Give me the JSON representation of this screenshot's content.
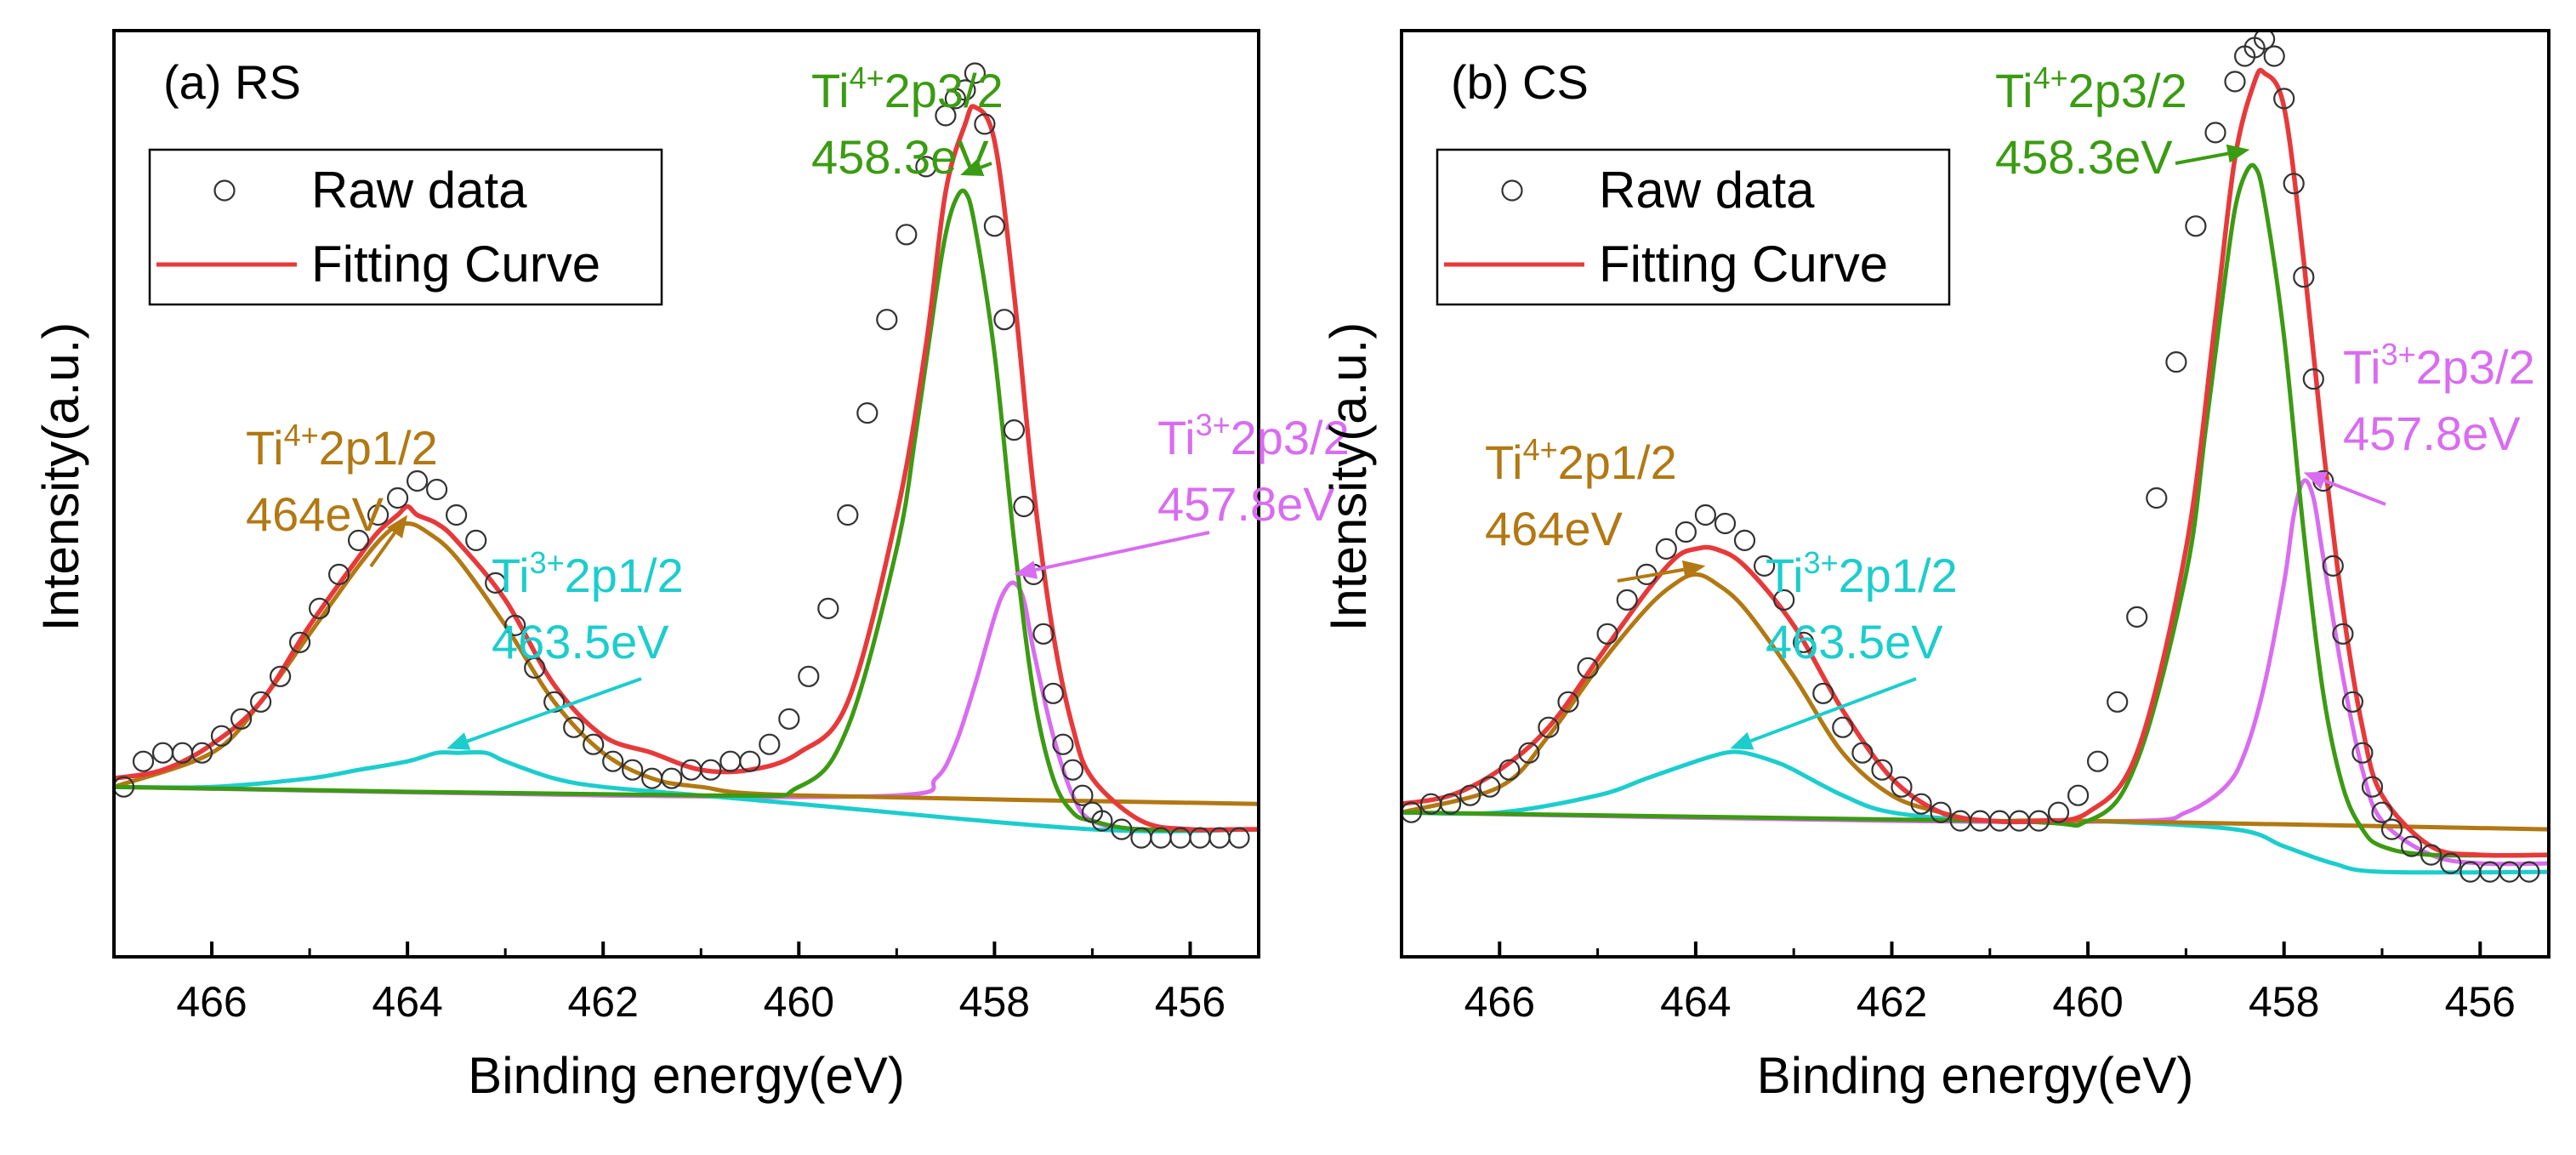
{
  "colors": {
    "fit": "#e8393a",
    "ti4_3": "#3b9b12",
    "ti4_1": "#b27812",
    "ti3_1": "#1ccdcd",
    "ti3_3": "#d96cf0",
    "raw": "#333333",
    "axis": "#000000"
  },
  "chart_data": [
    {
      "type": "scatter",
      "title": "(a) RS",
      "xlabel": "Binding energy(eV)",
      "ylabel": "Intensity(a.u.)",
      "xlim": [
        467,
        455.3
      ],
      "ylim": [
        0,
        1.09
      ],
      "xticks": [
        466,
        464,
        462,
        460,
        458,
        456
      ],
      "legend": {
        "position": "top-left",
        "entries": [
          "Raw data",
          "Fitting Curve"
        ]
      },
      "series": [
        {
          "name": "Raw data",
          "kind": "markers",
          "x": [
            466.9,
            466.7,
            466.5,
            466.3,
            466.1,
            465.9,
            465.7,
            465.5,
            465.3,
            465.1,
            464.9,
            464.7,
            464.5,
            464.3,
            464.1,
            463.9,
            463.7,
            463.5,
            463.3,
            463.1,
            462.9,
            462.7,
            462.5,
            462.3,
            462.1,
            461.9,
            461.7,
            461.5,
            461.3,
            461.1,
            460.9,
            460.7,
            460.5,
            460.3,
            460.1,
            459.9,
            459.7,
            459.5,
            459.3,
            459.1,
            458.9,
            458.7,
            458.5,
            458.4,
            458.3,
            458.2,
            458.1,
            458.0,
            457.9,
            457.8,
            457.7,
            457.6,
            457.5,
            457.4,
            457.3,
            457.2,
            457.1,
            457.0,
            456.9,
            456.7,
            456.5,
            456.3,
            456.1,
            455.9,
            455.7,
            455.5
          ],
          "y": [
            0.2,
            0.23,
            0.24,
            0.24,
            0.24,
            0.26,
            0.28,
            0.3,
            0.33,
            0.37,
            0.41,
            0.45,
            0.49,
            0.52,
            0.54,
            0.56,
            0.55,
            0.52,
            0.49,
            0.44,
            0.39,
            0.34,
            0.3,
            0.27,
            0.25,
            0.23,
            0.22,
            0.21,
            0.21,
            0.22,
            0.22,
            0.23,
            0.23,
            0.25,
            0.28,
            0.33,
            0.41,
            0.52,
            0.64,
            0.75,
            0.85,
            0.93,
            0.99,
            1.01,
            1.02,
            1.04,
            0.98,
            0.86,
            0.75,
            0.62,
            0.53,
            0.45,
            0.38,
            0.31,
            0.25,
            0.22,
            0.19,
            0.17,
            0.16,
            0.15,
            0.14,
            0.14,
            0.14,
            0.14,
            0.14,
            0.14
          ]
        },
        {
          "name": "Fitting Curve",
          "kind": "fit",
          "color_key": "fit",
          "x": [
            467.0,
            466.5,
            466.0,
            465.5,
            465.0,
            464.5,
            464.3,
            464.1,
            464.0,
            463.9,
            463.7,
            463.5,
            463.0,
            462.5,
            462.0,
            461.5,
            461.0,
            460.5,
            460.0,
            459.5,
            459.0,
            458.7,
            458.5,
            458.3,
            458.2,
            458.0,
            457.8,
            457.6,
            457.4,
            457.2,
            457.0,
            456.5,
            456.0,
            455.5,
            455.3
          ],
          "y": [
            0.21,
            0.22,
            0.25,
            0.3,
            0.39,
            0.47,
            0.5,
            0.52,
            0.53,
            0.52,
            0.51,
            0.49,
            0.42,
            0.32,
            0.26,
            0.24,
            0.22,
            0.22,
            0.24,
            0.3,
            0.52,
            0.72,
            0.9,
            0.98,
            1.0,
            0.96,
            0.78,
            0.55,
            0.38,
            0.27,
            0.21,
            0.16,
            0.15,
            0.15,
            0.15
          ]
        },
        {
          "name": "Ti4+ 2p3/2",
          "kind": "component",
          "color_key": "ti4_3",
          "x": [
            467.0,
            461.0,
            460.0,
            459.5,
            459.0,
            458.8,
            458.6,
            458.5,
            458.4,
            458.3,
            458.2,
            458.0,
            457.8,
            457.6,
            457.4,
            457.2,
            457.0,
            456.5,
            455.3
          ],
          "y": [
            0.2,
            0.19,
            0.2,
            0.27,
            0.48,
            0.62,
            0.78,
            0.85,
            0.89,
            0.9,
            0.86,
            0.71,
            0.49,
            0.31,
            0.21,
            0.17,
            0.16,
            0.15,
            0.15
          ]
        },
        {
          "name": "Ti4+ 2p1/2",
          "kind": "component",
          "color_key": "ti4_1",
          "x": [
            467.0,
            466.0,
            465.5,
            465.0,
            464.5,
            464.2,
            464.0,
            463.8,
            463.5,
            463.0,
            462.5,
            462.0,
            461.5,
            461.0,
            460.0,
            455.3
          ],
          "y": [
            0.2,
            0.24,
            0.3,
            0.38,
            0.46,
            0.5,
            0.51,
            0.5,
            0.47,
            0.39,
            0.3,
            0.24,
            0.21,
            0.2,
            0.19,
            0.18
          ]
        },
        {
          "name": "Ti3+ 2p1/2",
          "kind": "component",
          "color_key": "ti3_1",
          "x": [
            467.0,
            466.0,
            465.0,
            464.5,
            464.0,
            463.7,
            463.5,
            463.2,
            463.0,
            462.5,
            462.0,
            461.0,
            460.0,
            457.0,
            455.3
          ],
          "y": [
            0.2,
            0.2,
            0.21,
            0.22,
            0.23,
            0.24,
            0.24,
            0.24,
            0.23,
            0.21,
            0.2,
            0.19,
            0.18,
            0.15,
            0.15
          ]
        },
        {
          "name": "Ti3+ 2p3/2",
          "kind": "component",
          "color_key": "ti3_3",
          "x": [
            467.0,
            462.0,
            459.0,
            458.6,
            458.4,
            458.2,
            458.0,
            457.9,
            457.8,
            457.7,
            457.6,
            457.4,
            457.2,
            457.0,
            456.5,
            455.3
          ],
          "y": [
            0.2,
            0.19,
            0.19,
            0.21,
            0.25,
            0.32,
            0.4,
            0.43,
            0.44,
            0.42,
            0.36,
            0.26,
            0.19,
            0.16,
            0.15,
            0.15
          ]
        }
      ],
      "annotations": [
        {
          "id": "a_ti4_3",
          "color_key": "ti4_3",
          "species": "Ti",
          "sup": "4+",
          "orbital": "2p3/2",
          "energy": "458.3eV",
          "target": [
            458.35,
            0.92
          ]
        },
        {
          "id": "a_ti3_3",
          "color_key": "ti3_3",
          "species": "Ti",
          "sup": "3+",
          "orbital": "2p3/2",
          "energy": "457.8eV",
          "target": [
            457.8,
            0.45
          ]
        },
        {
          "id": "a_ti4_1",
          "color_key": "ti4_1",
          "species": "Ti",
          "sup": "4+",
          "orbital": "2p1/2",
          "energy": "464eV",
          "target": [
            464.0,
            0.52
          ]
        },
        {
          "id": "a_ti3_1",
          "color_key": "ti3_1",
          "species": "Ti",
          "sup": "3+",
          "orbital": "2p1/2",
          "energy": "463.5eV",
          "target": [
            463.6,
            0.245
          ]
        }
      ]
    },
    {
      "type": "scatter",
      "title": "(b) CS",
      "xlabel": "Binding energy(eV)",
      "ylabel": "Intensity(a.u.)",
      "xlim": [
        467,
        455.3
      ],
      "ylim": [
        0,
        1.09
      ],
      "xticks": [
        466,
        464,
        462,
        460,
        458,
        456
      ],
      "legend": {
        "position": "top-left",
        "entries": [
          "Raw data",
          "Fitting Curve"
        ]
      },
      "series": [
        {
          "name": "Raw data",
          "kind": "markers",
          "x": [
            466.9,
            466.7,
            466.5,
            466.3,
            466.1,
            465.9,
            465.7,
            465.5,
            465.3,
            465.1,
            464.9,
            464.7,
            464.5,
            464.3,
            464.1,
            463.9,
            463.7,
            463.5,
            463.3,
            463.1,
            462.9,
            462.7,
            462.5,
            462.3,
            462.1,
            461.9,
            461.7,
            461.5,
            461.3,
            461.1,
            460.9,
            460.7,
            460.5,
            460.3,
            460.1,
            459.9,
            459.7,
            459.5,
            459.3,
            459.1,
            458.9,
            458.7,
            458.5,
            458.4,
            458.3,
            458.2,
            458.1,
            458.0,
            457.9,
            457.8,
            457.7,
            457.6,
            457.5,
            457.4,
            457.3,
            457.2,
            457.1,
            457.0,
            456.9,
            456.7,
            456.5,
            456.3,
            456.1,
            455.9,
            455.7,
            455.5
          ],
          "y": [
            0.17,
            0.18,
            0.18,
            0.19,
            0.2,
            0.22,
            0.24,
            0.27,
            0.3,
            0.34,
            0.38,
            0.42,
            0.45,
            0.48,
            0.5,
            0.52,
            0.51,
            0.49,
            0.46,
            0.42,
            0.37,
            0.31,
            0.27,
            0.24,
            0.22,
            0.2,
            0.18,
            0.17,
            0.16,
            0.16,
            0.16,
            0.16,
            0.16,
            0.17,
            0.19,
            0.23,
            0.3,
            0.4,
            0.54,
            0.7,
            0.86,
            0.97,
            1.03,
            1.06,
            1.07,
            1.08,
            1.06,
            1.01,
            0.91,
            0.8,
            0.68,
            0.56,
            0.46,
            0.38,
            0.3,
            0.24,
            0.2,
            0.17,
            0.15,
            0.13,
            0.12,
            0.11,
            0.1,
            0.1,
            0.1,
            0.1
          ]
        },
        {
          "name": "Fitting Curve",
          "kind": "fit",
          "color_key": "fit",
          "x": [
            467.0,
            466.5,
            466.0,
            465.5,
            465.0,
            464.5,
            464.2,
            464.0,
            463.8,
            463.5,
            463.0,
            462.5,
            462.0,
            461.5,
            461.0,
            460.5,
            460.0,
            459.5,
            459.0,
            458.7,
            458.5,
            458.3,
            458.2,
            458.0,
            457.8,
            457.6,
            457.4,
            457.2,
            457.0,
            456.5,
            456.0,
            455.3
          ],
          "y": [
            0.18,
            0.19,
            0.22,
            0.27,
            0.35,
            0.43,
            0.47,
            0.48,
            0.48,
            0.46,
            0.39,
            0.29,
            0.21,
            0.17,
            0.16,
            0.16,
            0.17,
            0.24,
            0.48,
            0.75,
            0.94,
            1.03,
            1.04,
            1.0,
            0.82,
            0.6,
            0.41,
            0.27,
            0.19,
            0.13,
            0.12,
            0.12
          ]
        },
        {
          "name": "Ti4+ 2p3/2",
          "kind": "component",
          "color_key": "ti4_3",
          "x": [
            467.0,
            461.0,
            460.0,
            459.5,
            459.0,
            458.8,
            458.6,
            458.5,
            458.4,
            458.3,
            458.2,
            458.0,
            457.8,
            457.6,
            457.4,
            457.2,
            457.0,
            456.5,
            455.3
          ],
          "y": [
            0.17,
            0.16,
            0.16,
            0.23,
            0.45,
            0.62,
            0.8,
            0.88,
            0.92,
            0.93,
            0.89,
            0.73,
            0.5,
            0.31,
            0.2,
            0.15,
            0.13,
            0.12,
            0.12
          ]
        },
        {
          "name": "Ti4+ 2p1/2",
          "kind": "component",
          "color_key": "ti4_1",
          "x": [
            467.0,
            466.0,
            465.5,
            465.0,
            464.5,
            464.2,
            464.0,
            463.8,
            463.5,
            463.0,
            462.5,
            462.0,
            461.5,
            461.0,
            460.0,
            455.3
          ],
          "y": [
            0.17,
            0.2,
            0.26,
            0.34,
            0.41,
            0.44,
            0.45,
            0.44,
            0.41,
            0.33,
            0.24,
            0.19,
            0.17,
            0.16,
            0.16,
            0.15
          ]
        },
        {
          "name": "Ti3+ 2p1/2",
          "kind": "component",
          "color_key": "ti3_1",
          "x": [
            467.0,
            466.0,
            465.0,
            464.5,
            464.0,
            463.7,
            463.5,
            463.2,
            463.0,
            462.5,
            462.0,
            461.0,
            460.0,
            458.5,
            458.0,
            457.5,
            457.0,
            455.3
          ],
          "y": [
            0.17,
            0.17,
            0.19,
            0.21,
            0.23,
            0.24,
            0.24,
            0.23,
            0.22,
            0.19,
            0.17,
            0.16,
            0.16,
            0.15,
            0.13,
            0.11,
            0.1,
            0.1
          ]
        },
        {
          "name": "Ti3+ 2p3/2",
          "kind": "component",
          "color_key": "ti3_3",
          "x": [
            467.0,
            462.0,
            459.5,
            459.0,
            458.6,
            458.4,
            458.2,
            458.0,
            457.9,
            457.8,
            457.7,
            457.6,
            457.4,
            457.2,
            457.0,
            456.5,
            456.0,
            455.3
          ],
          "y": [
            0.17,
            0.16,
            0.16,
            0.17,
            0.2,
            0.24,
            0.32,
            0.44,
            0.52,
            0.56,
            0.54,
            0.47,
            0.33,
            0.22,
            0.16,
            0.12,
            0.11,
            0.11
          ]
        }
      ],
      "annotations": [
        {
          "id": "b_ti4_3",
          "color_key": "ti4_3",
          "species": "Ti",
          "sup": "4+",
          "orbital": "2p3/2",
          "energy": "458.3eV",
          "target": [
            458.35,
            0.95
          ]
        },
        {
          "id": "b_ti3_3",
          "color_key": "ti3_3",
          "species": "Ti",
          "sup": "3+",
          "orbital": "2p3/2",
          "energy": "457.8eV",
          "target": [
            457.8,
            0.57
          ]
        },
        {
          "id": "b_ti4_1",
          "color_key": "ti4_1",
          "species": "Ti",
          "sup": "4+",
          "orbital": "2p1/2",
          "energy": "464eV",
          "target": [
            463.9,
            0.46
          ]
        },
        {
          "id": "b_ti3_1",
          "color_key": "ti3_1",
          "species": "Ti",
          "sup": "3+",
          "orbital": "2p1/2",
          "energy": "463.5eV",
          "target": [
            463.65,
            0.245
          ]
        }
      ]
    }
  ]
}
